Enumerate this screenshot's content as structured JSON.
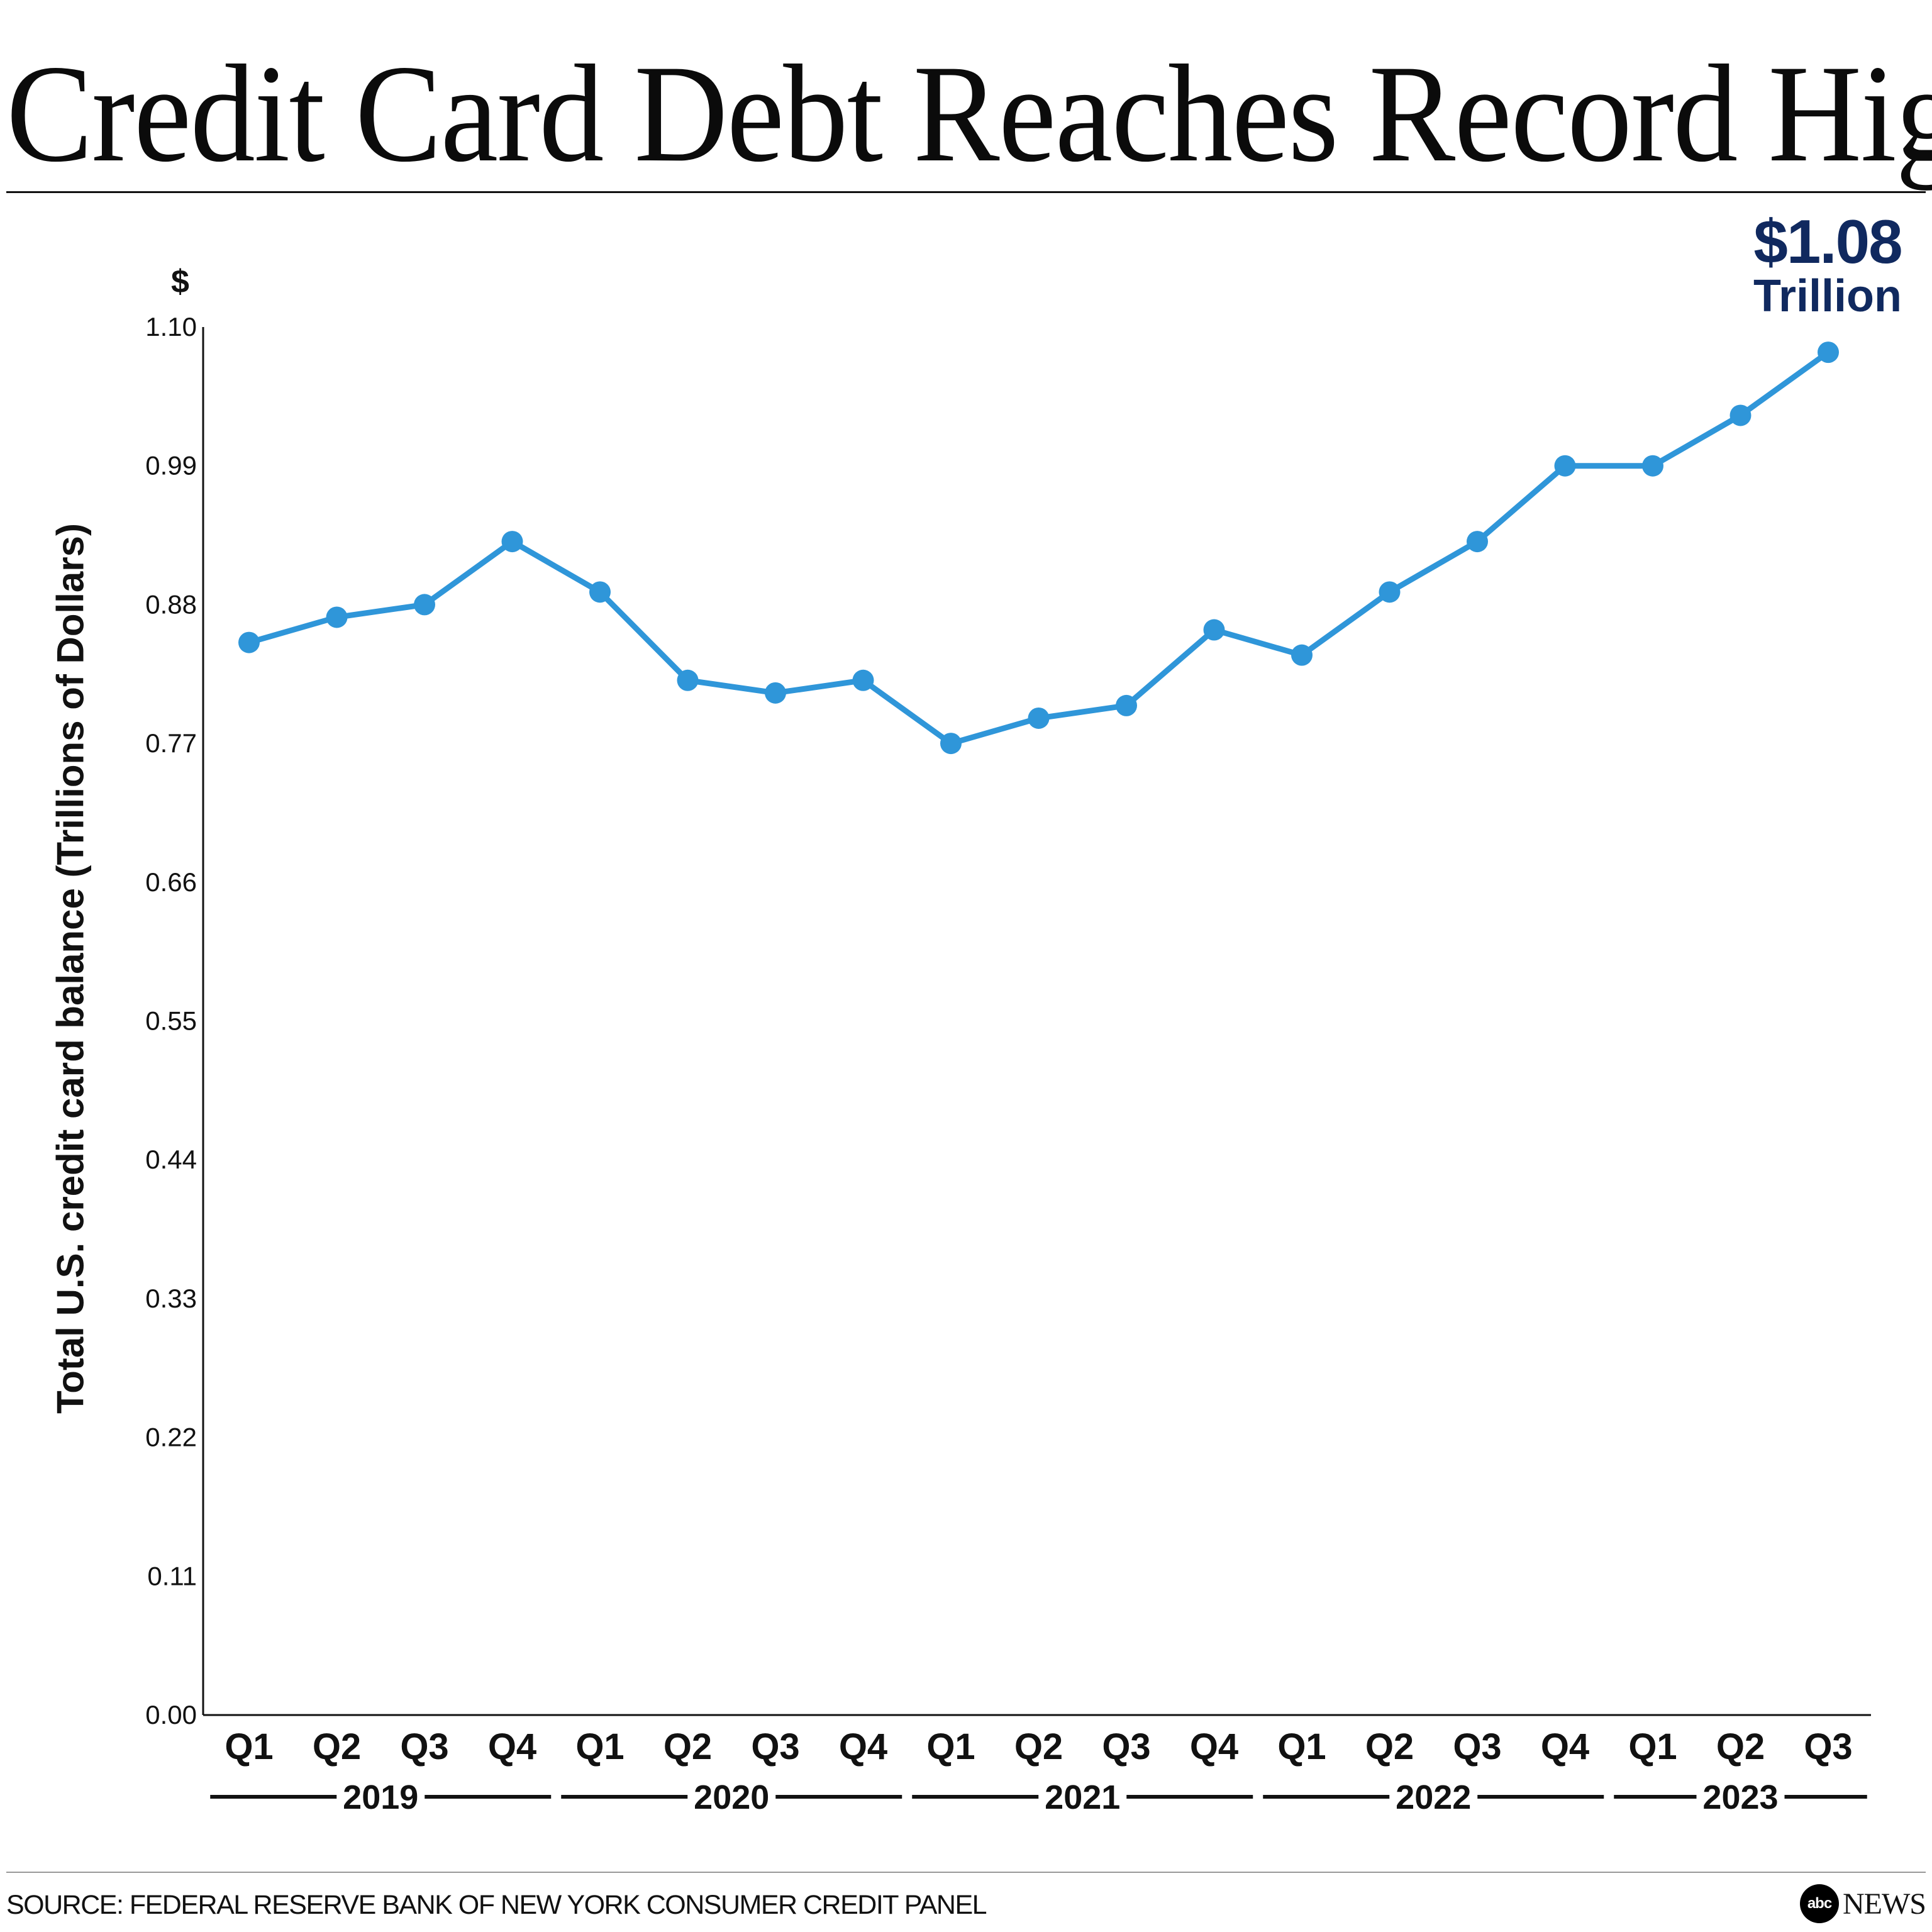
{
  "title": "Credit Card Debt Reaches Record High",
  "callout": {
    "value": "$1.08",
    "unit": "Trillion"
  },
  "currency_symbol": "$",
  "source": "SOURCE: FEDERAL RESERVE BANK OF NEW YORK CONSUMER CREDIT PANEL",
  "logo": {
    "circle": "abc",
    "word": "NEWS"
  },
  "colors": {
    "line": "#2f96d9",
    "callout": "#10295f",
    "text": "#111111"
  },
  "chart_data": {
    "type": "line",
    "ylabel": "Total U.S. credit card balance (Trillions of Dollars)",
    "xlabel": "",
    "ylim": [
      0,
      1.1
    ],
    "yticks": [
      "0.00",
      "0.11",
      "0.22",
      "0.33",
      "0.44",
      "0.55",
      "0.66",
      "0.77",
      "0.88",
      "0.99",
      "1.10"
    ],
    "grid": false,
    "categories": [
      "Q1",
      "Q2",
      "Q3",
      "Q4",
      "Q1",
      "Q2",
      "Q3",
      "Q4",
      "Q1",
      "Q2",
      "Q3",
      "Q4",
      "Q1",
      "Q2",
      "Q3",
      "Q4",
      "Q1",
      "Q2",
      "Q3"
    ],
    "groups": [
      {
        "label": "2019",
        "count": 4
      },
      {
        "label": "2020",
        "count": 4
      },
      {
        "label": "2021",
        "count": 4
      },
      {
        "label": "2022",
        "count": 4
      },
      {
        "label": "2023",
        "count": 3
      }
    ],
    "series": [
      {
        "values": [
          0.85,
          0.87,
          0.88,
          0.93,
          0.89,
          0.82,
          0.81,
          0.82,
          0.77,
          0.79,
          0.8,
          0.86,
          0.84,
          0.89,
          0.93,
          0.99,
          0.99,
          1.03,
          1.08
        ]
      }
    ]
  }
}
